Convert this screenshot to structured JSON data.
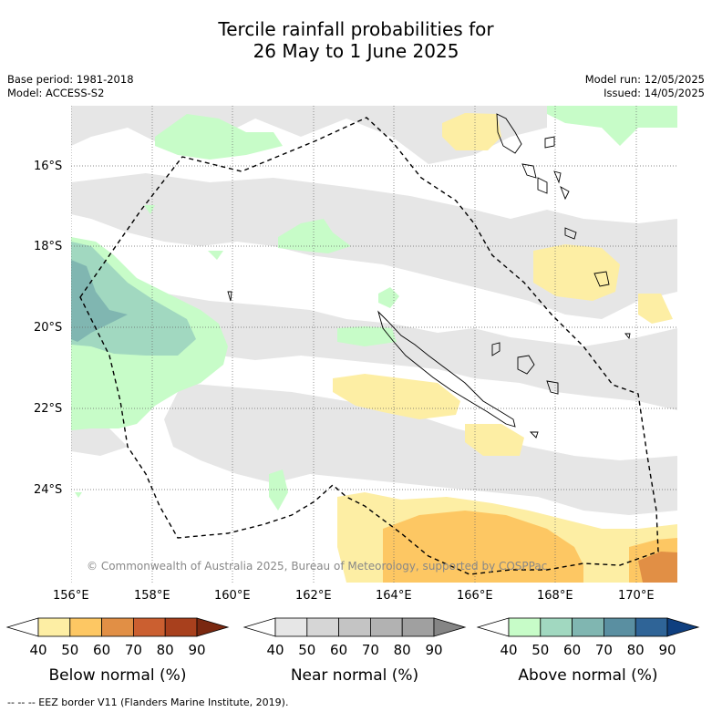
{
  "title": {
    "line1": "Tercile rainfall probabilities for",
    "line2": "26 May to 1 June 2025"
  },
  "meta": {
    "base_period": "Base period: 1981-2018",
    "model": "Model: ACCESS-S2",
    "model_run": "Model run: 12/05/2025",
    "issued": "Issued: 14/05/2025"
  },
  "axes": {
    "lon_labels": [
      "156°E",
      "158°E",
      "160°E",
      "162°E",
      "164°E",
      "166°E",
      "168°E",
      "170°E"
    ],
    "lat_labels": [
      "16°S",
      "18°S",
      "20°S",
      "22°S",
      "24°S"
    ]
  },
  "copyright": "© Commonwealth of Australia 2025, Bureau of Meteorology, supported by COSPPac",
  "colorbars": [
    {
      "label": "Below normal (%)",
      "ticks": [
        "40",
        "50",
        "60",
        "70",
        "80",
        "90"
      ],
      "colors": [
        "#ffffff",
        "#fdeea4",
        "#fdc763",
        "#e18f45",
        "#cb5f30",
        "#a8401d",
        "#7a2810"
      ]
    },
    {
      "label": "Near normal (%)",
      "ticks": [
        "40",
        "50",
        "60",
        "70",
        "80",
        "90"
      ],
      "colors": [
        "#ffffff",
        "#e6e6e6",
        "#d6d6d6",
        "#c4c4c4",
        "#b2b2b2",
        "#a0a0a0",
        "#858585"
      ]
    },
    {
      "label": "Above normal (%)",
      "ticks": [
        "40",
        "50",
        "60",
        "70",
        "80",
        "90"
      ],
      "colors": [
        "#ffffff",
        "#c7fcc8",
        "#a1d8c0",
        "#80b6b1",
        "#5a8fa1",
        "#2f6497",
        "#0f3f7f"
      ]
    }
  ],
  "footer": "-- -- -- EEZ border V11 (Flanders Marine Institute, 2019).",
  "colors": {
    "near": "#e6e6e6",
    "below50": "#fdeea4",
    "below60": "#fdc763",
    "below70": "#e18f45",
    "above50": "#c7fcc8",
    "above60": "#a1d8c0",
    "above70": "#80b6b1"
  }
}
